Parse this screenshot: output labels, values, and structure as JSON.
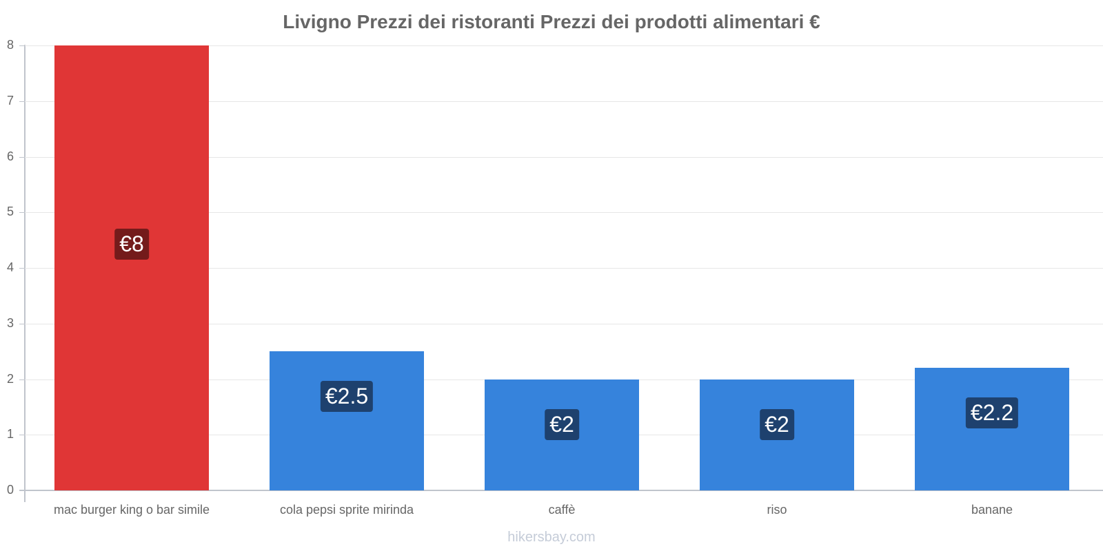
{
  "chart_data": {
    "type": "bar",
    "title": "Livigno Prezzi dei ristoranti Prezzi dei prodotti alimentari €",
    "categories": [
      "mac burger king o bar simile",
      "cola pepsi sprite mirinda",
      "caffè",
      "riso",
      "banane"
    ],
    "values": [
      8,
      2.5,
      2,
      2,
      2.2
    ],
    "value_labels": [
      "€8",
      "€2.5",
      "€2",
      "€2",
      "€2.2"
    ],
    "bar_colors": [
      "#e03636",
      "#3683dc",
      "#3683dc",
      "#3683dc",
      "#3683dc"
    ],
    "label_bg_colors": [
      "#741b1b",
      "#1e416e",
      "#1e416e",
      "#1e416e",
      "#1e416e"
    ],
    "xlabel": "",
    "ylabel": "",
    "ylim": [
      0,
      8
    ],
    "yticks": [
      "0",
      "1",
      "2",
      "3",
      "4",
      "5",
      "6",
      "7",
      "8"
    ],
    "grid": true,
    "legend": "none"
  },
  "footer": {
    "watermark": "hikersbay.com"
  }
}
